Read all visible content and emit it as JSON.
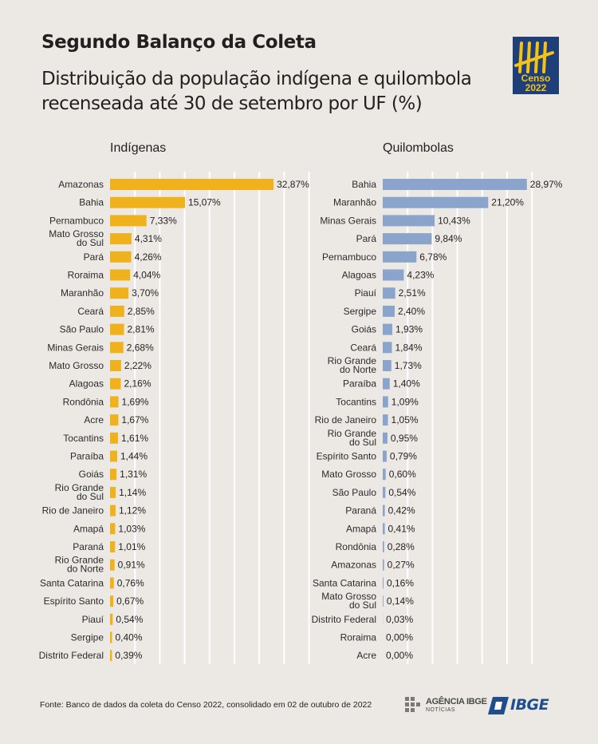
{
  "header": {
    "title": "Segundo Balanço da Coleta",
    "subtitle": "Distribuição da população indígena e quilombola recenseada até 30 de setembro por UF (%)"
  },
  "logo": {
    "line1": "Censo",
    "line2": "2022"
  },
  "colors": {
    "indigenas": "#f0b21c",
    "quilombolas": "#8aa4cc",
    "background": "#ece9e5",
    "logo_bg": "#1f3f78",
    "logo_fg": "#f3c31a"
  },
  "chart_data": [
    {
      "type": "bar",
      "orientation": "horizontal",
      "title": "Indígenas",
      "categories": [
        "Amazonas",
        "Bahia",
        "Pernambuco",
        "Mato Grosso\ndo Sul",
        "Pará",
        "Roraima",
        "Maranhão",
        "Ceará",
        "São Paulo",
        "Minas Gerais",
        "Mato Grosso",
        "Alagoas",
        "Rondônia",
        "Acre",
        "Tocantins",
        "Paraíba",
        "Goiás",
        "Rio Grande\ndo Sul",
        "Rio de Janeiro",
        "Amapá",
        "Paraná",
        "Rio Grande\ndo Norte",
        "Santa Catarina",
        "Espírito Santo",
        "Piauí",
        "Sergipe",
        "Distrito Federal"
      ],
      "values": [
        32.87,
        15.07,
        7.33,
        4.31,
        4.26,
        4.04,
        3.7,
        2.85,
        2.81,
        2.68,
        2.22,
        2.16,
        1.69,
        1.67,
        1.61,
        1.44,
        1.31,
        1.14,
        1.12,
        1.03,
        1.01,
        0.91,
        0.76,
        0.67,
        0.54,
        0.4,
        0.39
      ],
      "labels": [
        "32,87%",
        "15,07%",
        "7,33%",
        "4,31%",
        "4,26%",
        "4,04%",
        "3,70%",
        "2,85%",
        "2,81%",
        "2,68%",
        "2,22%",
        "2,16%",
        "1,69%",
        "1,67%",
        "1,61%",
        "1,44%",
        "1,31%",
        "1,14%",
        "1,12%",
        "1,03%",
        "1,01%",
        "0,91%",
        "0,76%",
        "0,67%",
        "0,54%",
        "0,40%",
        "0,39%"
      ],
      "xlim": [
        0,
        40
      ],
      "grid": true
    },
    {
      "type": "bar",
      "orientation": "horizontal",
      "title": "Quilombolas",
      "categories": [
        "Bahia",
        "Maranhão",
        "Minas Gerais",
        "Pará",
        "Pernambuco",
        "Alagoas",
        "Piauí",
        "Sergipe",
        "Goiás",
        "Ceará",
        "Rio Grande\ndo Norte",
        "Paraíba",
        "Tocantins",
        "Rio de Janeiro",
        "Rio Grande\ndo Sul",
        "Espírito Santo",
        "Mato Grosso",
        "São Paulo",
        "Paraná",
        "Amapá",
        "Rondônia",
        "Amazonas",
        "Santa Catarina",
        "Mato Grosso\ndo Sul",
        "Distrito Federal",
        "Roraima",
        "Acre"
      ],
      "values": [
        28.97,
        21.2,
        10.43,
        9.84,
        6.78,
        4.23,
        2.51,
        2.4,
        1.93,
        1.84,
        1.73,
        1.4,
        1.09,
        1.05,
        0.95,
        0.79,
        0.6,
        0.54,
        0.42,
        0.41,
        0.28,
        0.27,
        0.16,
        0.14,
        0.03,
        0.0,
        0.0
      ],
      "labels": [
        "28,97%",
        "21,20%",
        "10,43%",
        "9,84%",
        "6,78%",
        "4,23%",
        "2,51%",
        "2,40%",
        "1,93%",
        "1,84%",
        "1,73%",
        "1,40%",
        "1,09%",
        "1,05%",
        "0,95%",
        "0,79%",
        "0,60%",
        "0,54%",
        "0,42%",
        "0,41%",
        "0,28%",
        "0,27%",
        "0,16%",
        "0,14%",
        "0,03%",
        "0,00%",
        "0,00%"
      ],
      "xlim": [
        0,
        30
      ],
      "grid": true
    }
  ],
  "footer": {
    "source": "Fonte: Banco de dados da coleta do Censo 2022, consolidado em 02 de outubro de 2022",
    "agencia_line1": "AGÊNCIA IBGE",
    "agencia_line2": "NOTÍCIAS",
    "ibge": "IBGE"
  }
}
